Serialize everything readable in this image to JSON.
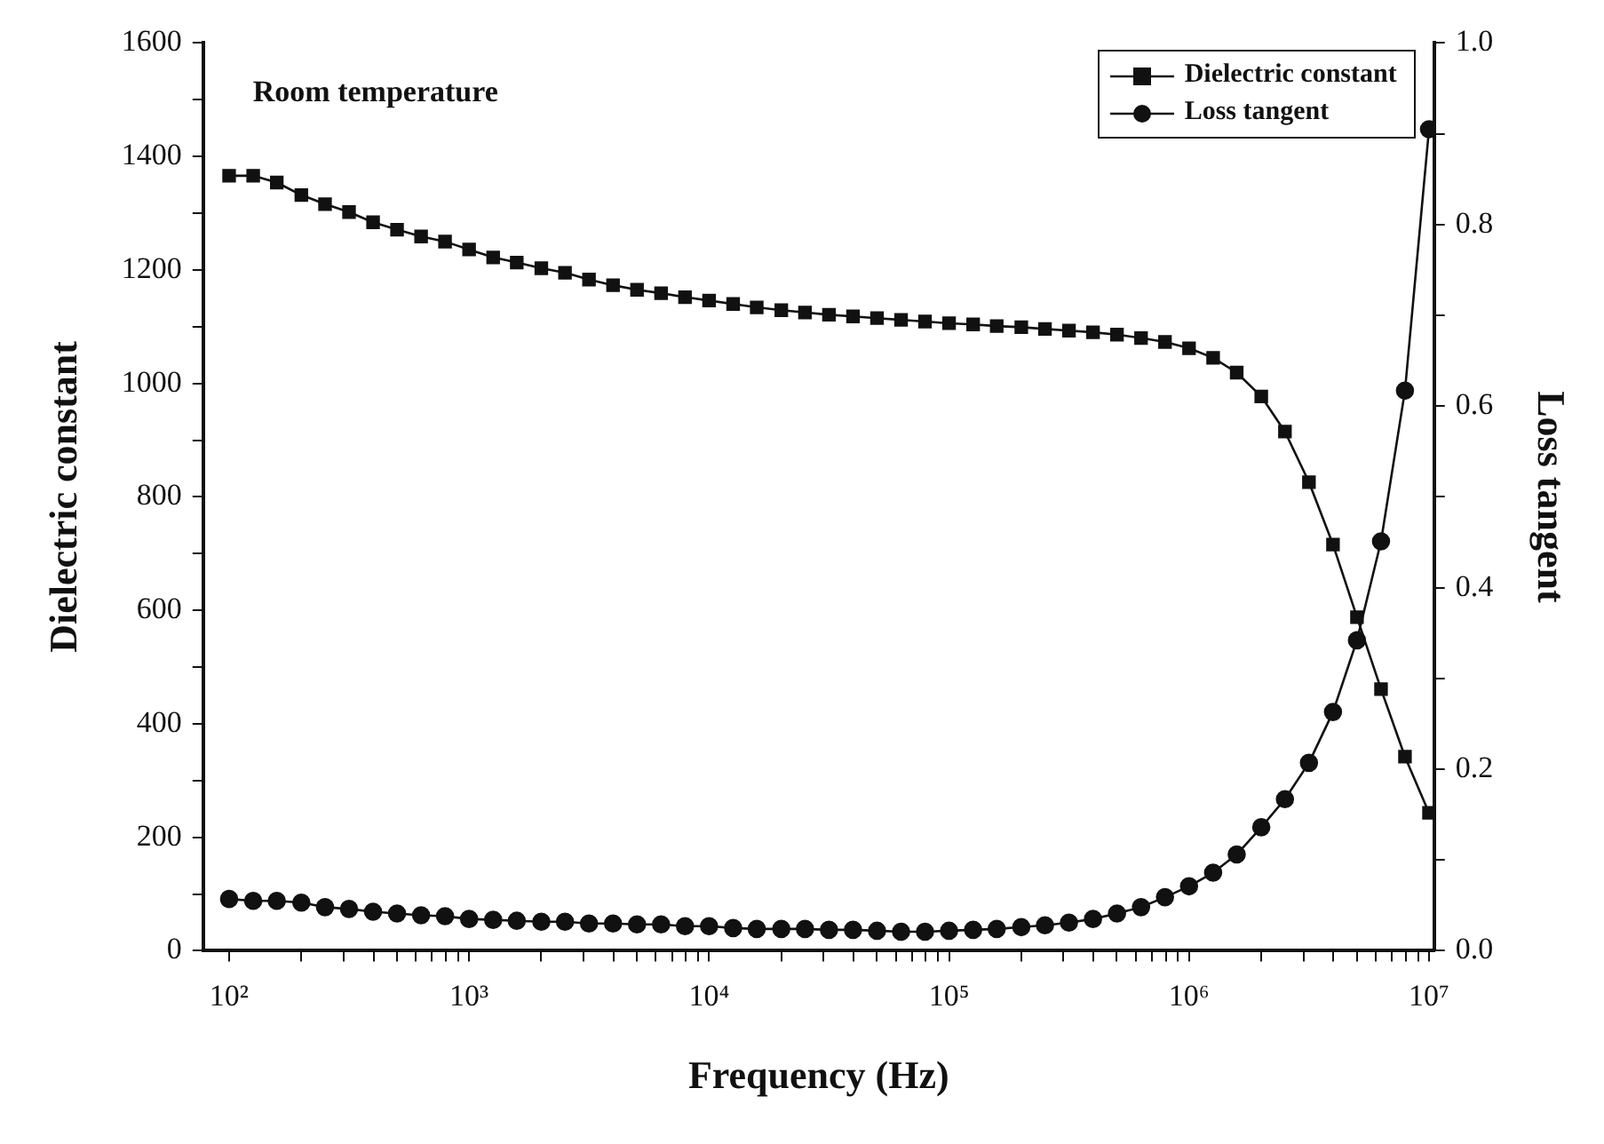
{
  "chart_data": {
    "type": "line",
    "annotations": [
      "Room temperature"
    ],
    "xlabel": "Frequency (Hz)",
    "ylabel": "Dielectric constant",
    "y2label": "Loss tangent",
    "x": [
      100,
      126,
      158,
      200,
      251,
      316,
      398,
      501,
      631,
      794,
      1000,
      1260,
      1580,
      2000,
      2510,
      3160,
      3980,
      5010,
      6310,
      7940,
      10000,
      12600,
      15800,
      20000,
      25100,
      31600,
      39800,
      50100,
      63100,
      79400,
      100000,
      126000,
      158000,
      200000,
      251000,
      316000,
      398000,
      501000,
      631000,
      794000,
      1000000,
      1260000,
      1580000,
      2000000,
      2510000,
      3160000,
      3980000,
      5010000,
      6310000,
      7940000,
      10000000
    ],
    "series": [
      {
        "name": "Dielectric constant",
        "color": "#111111",
        "marker": "square",
        "values": [
          1366,
          1366,
          1354,
          1332,
          1316,
          1302,
          1284,
          1271,
          1259,
          1250,
          1236,
          1222,
          1213,
          1203,
          1195,
          1183,
          1173,
          1165,
          1159,
          1152,
          1146,
          1140,
          1134,
          1129,
          1125,
          1121,
          1118,
          1115,
          1112,
          1109,
          1106,
          1104,
          1101,
          1099,
          1096,
          1093,
          1090,
          1086,
          1080,
          1073,
          1062,
          1045,
          1019,
          977,
          915,
          826,
          716,
          588,
          461,
          342,
          243
        ]
      },
      {
        "name": "Loss tangent",
        "color": "#111111",
        "marker": "circle",
        "axis": "y2",
        "values": [
          0.057,
          0.055,
          0.055,
          0.053,
          0.048,
          0.046,
          0.043,
          0.041,
          0.039,
          0.038,
          0.035,
          0.034,
          0.033,
          0.032,
          0.032,
          0.03,
          0.03,
          0.029,
          0.029,
          0.027,
          0.027,
          0.025,
          0.024,
          0.024,
          0.024,
          0.023,
          0.023,
          0.022,
          0.021,
          0.021,
          0.022,
          0.023,
          0.024,
          0.026,
          0.028,
          0.031,
          0.035,
          0.041,
          0.048,
          0.059,
          0.071,
          0.086,
          0.106,
          0.136,
          0.167,
          0.207,
          0.263,
          0.342,
          0.451,
          0.617,
          0.905
        ]
      }
    ],
    "log": "x",
    "xlim": [
      78,
      10500000
    ],
    "xticks": [
      {
        "value": 100,
        "label": "10²"
      },
      {
        "value": 200,
        "label": null
      },
      {
        "value": 300,
        "label": null
      },
      {
        "value": 400,
        "label": null
      },
      {
        "value": 500,
        "label": null
      },
      {
        "value": 600,
        "label": null
      },
      {
        "value": 700,
        "label": null
      },
      {
        "value": 800,
        "label": null
      },
      {
        "value": 900,
        "label": null
      },
      {
        "value": 1000,
        "label": "10³"
      },
      {
        "value": 2000,
        "label": null
      },
      {
        "value": 3000,
        "label": null
      },
      {
        "value": 4000,
        "label": null
      },
      {
        "value": 5000,
        "label": null
      },
      {
        "value": 6000,
        "label": null
      },
      {
        "value": 7000,
        "label": null
      },
      {
        "value": 8000,
        "label": null
      },
      {
        "value": 9000,
        "label": null
      },
      {
        "value": 10000,
        "label": "10⁴"
      },
      {
        "value": 20000,
        "label": null
      },
      {
        "value": 30000,
        "label": null
      },
      {
        "value": 40000,
        "label": null
      },
      {
        "value": 50000,
        "label": null
      },
      {
        "value": 60000,
        "label": null
      },
      {
        "value": 70000,
        "label": null
      },
      {
        "value": 80000,
        "label": null
      },
      {
        "value": 90000,
        "label": null
      },
      {
        "value": 100000,
        "label": "10⁵"
      },
      {
        "value": 200000,
        "label": null
      },
      {
        "value": 300000,
        "label": null
      },
      {
        "value": 400000,
        "label": null
      },
      {
        "value": 500000,
        "label": null
      },
      {
        "value": 600000,
        "label": null
      },
      {
        "value": 700000,
        "label": null
      },
      {
        "value": 800000,
        "label": null
      },
      {
        "value": 900000,
        "label": null
      },
      {
        "value": 1000000,
        "label": "10⁶"
      },
      {
        "value": 2000000,
        "label": null
      },
      {
        "value": 3000000,
        "label": null
      },
      {
        "value": 4000000,
        "label": null
      },
      {
        "value": 5000000,
        "label": null
      },
      {
        "value": 6000000,
        "label": null
      },
      {
        "value": 7000000,
        "label": null
      },
      {
        "value": 8000000,
        "label": null
      },
      {
        "value": 9000000,
        "label": null
      },
      {
        "value": 10000000,
        "label": "10⁷"
      }
    ],
    "ylim": [
      0,
      1600
    ],
    "yticks": [
      0,
      {
        "value": 100,
        "label": null
      },
      200,
      {
        "value": 300,
        "label": null
      },
      400,
      {
        "value": 500,
        "label": null
      },
      600,
      {
        "value": 700,
        "label": null
      },
      800,
      {
        "value": 900,
        "label": null
      },
      1000,
      {
        "value": 1100,
        "label": null
      },
      1200,
      {
        "value": 1300,
        "label": null
      },
      1400,
      {
        "value": 1500,
        "label": null
      },
      1600
    ],
    "y2lim": [
      0,
      1
    ],
    "y2ticks": [
      {
        "value": 0,
        "label": "0.0"
      },
      {
        "value": 0.1,
        "label": null
      },
      {
        "value": 0.2,
        "label": "0.2"
      },
      {
        "value": 0.3,
        "label": null
      },
      {
        "value": 0.4,
        "label": "0.4"
      },
      {
        "value": 0.5,
        "label": null
      },
      {
        "value": 0.6,
        "label": "0.6"
      },
      {
        "value": 0.7,
        "label": null
      },
      {
        "value": 0.8,
        "label": "0.8"
      },
      {
        "value": 0.9,
        "label": null
      },
      {
        "value": 1,
        "label": "1.0"
      }
    ],
    "grid": false,
    "legend": "top right",
    "line_style": "solid"
  }
}
